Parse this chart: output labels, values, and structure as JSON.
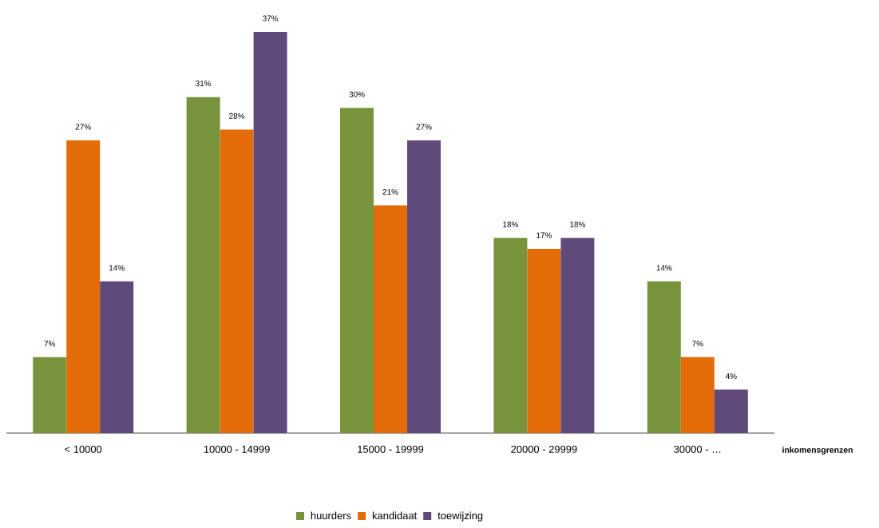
{
  "chart_data": {
    "type": "bar",
    "xlabel": "inkomensgrenzen",
    "categories": [
      "< 10000",
      "10000 - 14999",
      "15000 - 19999",
      "20000 - 29999",
      "30000 - …"
    ],
    "series": [
      {
        "name": "huurders",
        "color": "#77933c",
        "values": [
          7,
          31,
          30,
          18,
          14
        ],
        "value_labels": [
          "7%",
          "31%",
          "30%",
          "18%",
          "14%"
        ]
      },
      {
        "name": "kandidaat",
        "color": "#e36c09",
        "values": [
          27,
          28,
          21,
          17,
          7
        ],
        "value_labels": [
          "27%",
          "28%",
          "21%",
          "17%",
          "7%"
        ]
      },
      {
        "name": "toewijzing",
        "color": "#604a7b",
        "values": [
          14,
          37,
          27,
          18,
          4
        ],
        "value_labels": [
          "14%",
          "37%",
          "27%",
          "18%",
          "4%"
        ]
      }
    ],
    "legend": "bottom",
    "grid": false
  }
}
